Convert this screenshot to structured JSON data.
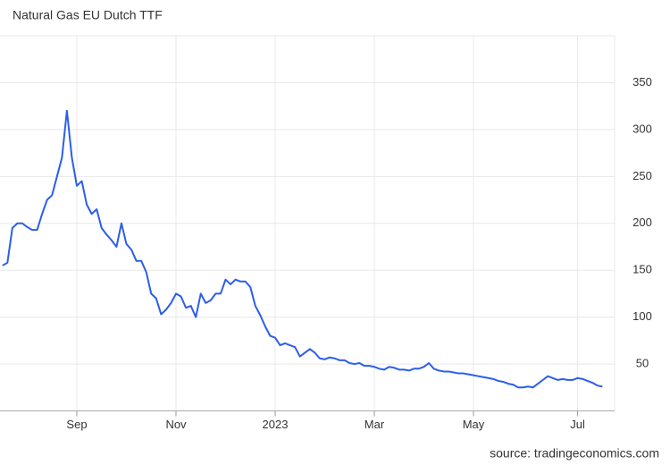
{
  "chart_data": {
    "type": "line",
    "title": "Natural Gas EU Dutch TTF",
    "source": "source: tradingeconomics.com",
    "categories": [
      null,
      null,
      null,
      null,
      null,
      null,
      null,
      null,
      null,
      null,
      null,
      null,
      null,
      null,
      null,
      "Sep",
      null,
      null,
      null,
      null,
      null,
      null,
      null,
      null,
      null,
      null,
      null,
      null,
      null,
      null,
      null,
      null,
      null,
      null,
      null,
      "Nov",
      null,
      null,
      null,
      null,
      null,
      null,
      null,
      null,
      null,
      null,
      null,
      null,
      null,
      null,
      null,
      null,
      null,
      null,
      null,
      "2023",
      null,
      null,
      null,
      null,
      null,
      null,
      null,
      null,
      null,
      null,
      null,
      null,
      null,
      null,
      null,
      null,
      null,
      null,
      null,
      "Mar",
      null,
      null,
      null,
      null,
      null,
      null,
      null,
      null,
      null,
      null,
      null,
      null,
      null,
      null,
      null,
      null,
      null,
      null,
      null,
      "May",
      null,
      null,
      null,
      null,
      null,
      null,
      null,
      null,
      null,
      null,
      null,
      null,
      null,
      null,
      null,
      null,
      null,
      null,
      null,
      null,
      "Jul",
      null,
      null,
      null,
      null,
      null
    ],
    "series": [
      {
        "color": "#2c5ee8",
        "values": [
          155,
          158,
          195,
          200,
          200,
          196,
          193,
          193,
          210,
          225,
          230,
          250,
          270,
          320,
          270,
          240,
          245,
          220,
          210,
          215,
          195,
          188,
          182,
          175,
          200,
          178,
          172,
          160,
          160,
          148,
          125,
          120,
          103,
          108,
          115,
          125,
          122,
          110,
          112,
          100,
          125,
          115,
          118,
          125,
          125,
          140,
          135,
          140,
          138,
          138,
          132,
          112,
          102,
          90,
          80,
          78,
          70,
          72,
          70,
          68,
          58,
          62,
          66,
          62,
          56,
          55,
          57,
          56,
          54,
          54,
          51,
          50,
          51,
          48,
          48,
          47,
          45,
          44,
          47,
          46,
          44,
          44,
          43,
          45,
          45,
          47,
          51,
          45,
          43,
          42,
          42,
          41,
          40,
          40,
          39,
          38,
          37,
          36,
          35,
          34,
          32,
          31,
          29,
          28,
          25,
          25,
          26,
          25,
          29,
          33,
          37,
          35,
          33,
          34,
          33,
          33,
          35,
          34,
          32,
          30,
          27,
          26
        ]
      }
    ],
    "ylim": [
      0,
      400
    ],
    "yticks": [
      50,
      100,
      150,
      200,
      250,
      300,
      350
    ],
    "grid": true
  }
}
